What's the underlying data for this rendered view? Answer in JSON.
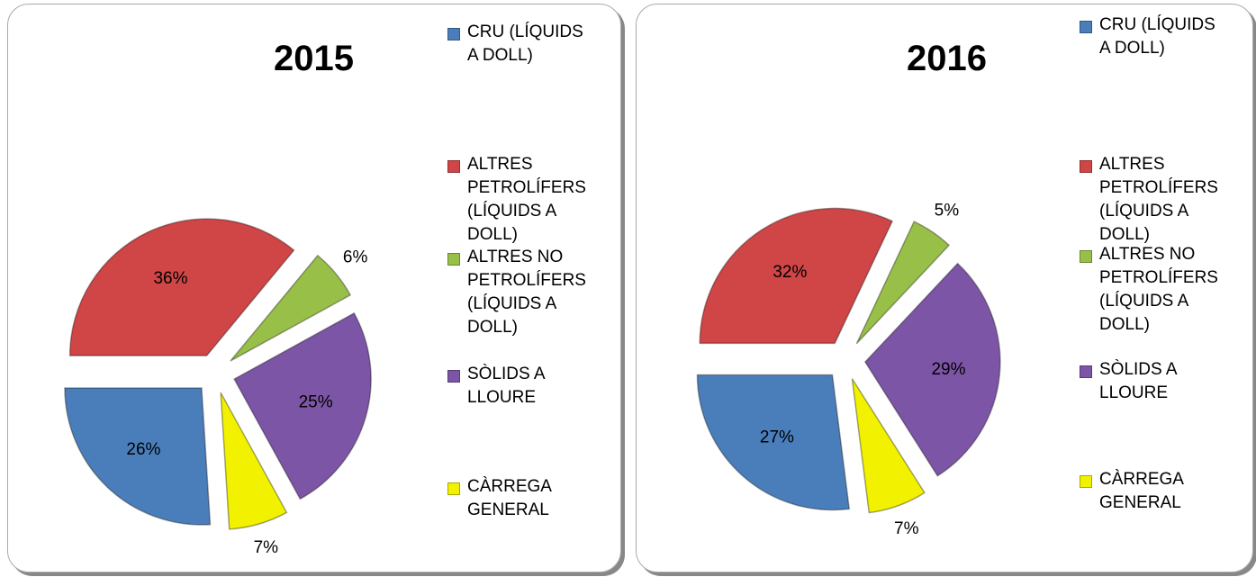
{
  "chart_data": [
    {
      "type": "pie",
      "title": "2015",
      "categories": [
        "CRU (LÍQUIDS A DOLL)",
        "ALTRES PETROLÍFERS (LÍQUIDS A DOLL)",
        "ALTRES NO PETROLÍFERS (LÍQUIDS A DOLL)",
        "SÒLIDS A LLOURE",
        "CÀRREGA GENERAL"
      ],
      "values": [
        26,
        36,
        6,
        25,
        7
      ],
      "value_labels": [
        "26%",
        "36%",
        "6%",
        "25%",
        "7%"
      ],
      "colors": [
        "#4a7ebb",
        "#d04545",
        "#98c048",
        "#7d55a6",
        "#f2f200"
      ]
    },
    {
      "type": "pie",
      "title": "2016",
      "categories": [
        "CRU (LÍQUIDS A DOLL)",
        "ALTRES PETROLÍFERS (LÍQUIDS A DOLL)",
        "ALTRES NO PETROLÍFERS (LÍQUIDS A DOLL)",
        "SÒLIDS A LLOURE",
        "CÀRREGA GENERAL"
      ],
      "values": [
        27,
        32,
        5,
        29,
        7
      ],
      "value_labels": [
        "27%",
        "32%",
        "5%",
        "29%",
        "7%"
      ],
      "colors": [
        "#4a7ebb",
        "#d04545",
        "#98c048",
        "#7d55a6",
        "#f2f200"
      ]
    }
  ]
}
